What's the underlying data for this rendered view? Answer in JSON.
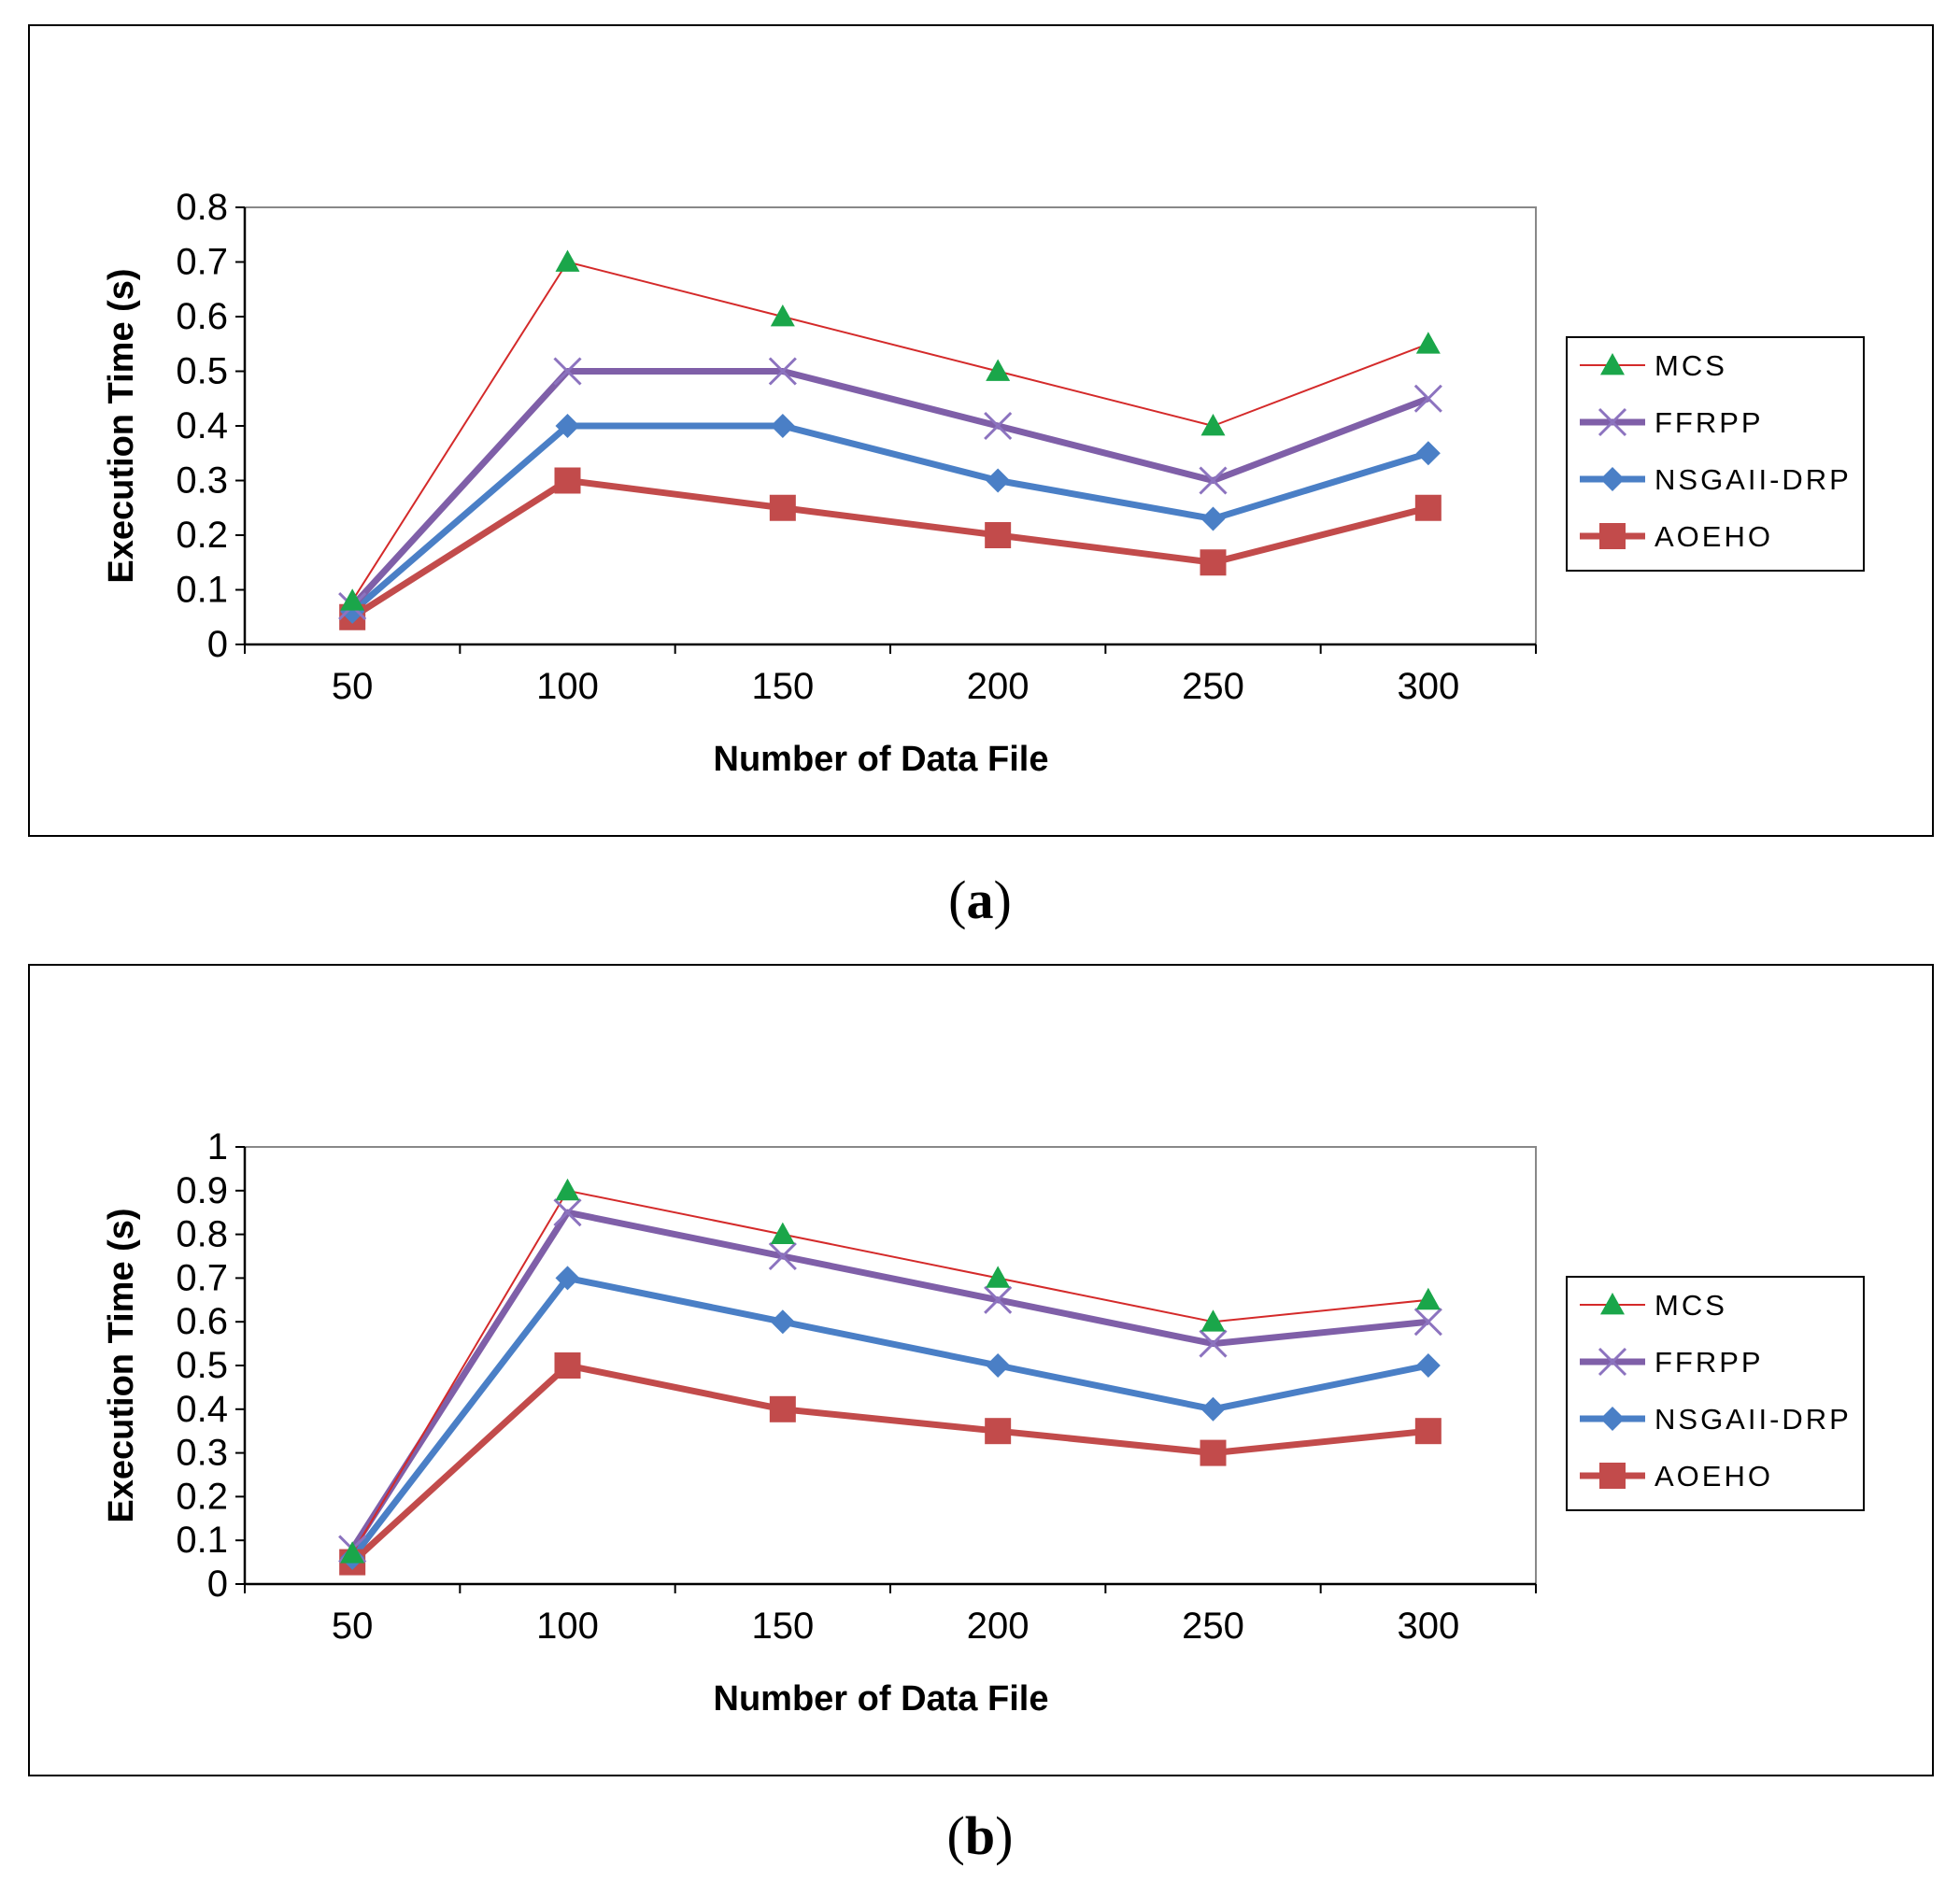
{
  "figures": [
    {
      "id": "a",
      "caption": "a",
      "chart_data": {
        "type": "line",
        "xlabel": "Number of Data File",
        "ylabel": "Execution Time (s)",
        "categories": [
          "50",
          "100",
          "150",
          "200",
          "250",
          "300"
        ],
        "ylim": [
          0,
          0.8
        ],
        "yticks": [
          "0",
          "0.1",
          "0.2",
          "0.3",
          "0.4",
          "0.5",
          "0.6",
          "0.7",
          "0.8"
        ],
        "grid": false,
        "legend_position": "right",
        "series": [
          {
            "name": "MCS",
            "color": "#d42a2a",
            "marker": "triangle",
            "values": [
              0.08,
              0.7,
              0.6,
              0.5,
              0.4,
              0.55
            ]
          },
          {
            "name": "FFRPP",
            "color": "#7f5fa8",
            "marker": "x",
            "values": [
              0.07,
              0.5,
              0.5,
              0.4,
              0.3,
              0.45
            ]
          },
          {
            "name": "NSGAII-DRP",
            "color": "#4a7fc6",
            "marker": "diamond",
            "values": [
              0.06,
              0.4,
              0.4,
              0.3,
              0.23,
              0.35
            ]
          },
          {
            "name": "AOEHO",
            "color": "#c24b4b",
            "marker": "square",
            "values": [
              0.05,
              0.3,
              0.25,
              0.2,
              0.15,
              0.25
            ]
          }
        ]
      }
    },
    {
      "id": "b",
      "caption": "b",
      "chart_data": {
        "type": "line",
        "xlabel": "Number of Data File",
        "ylabel": "Execution Time (s)",
        "categories": [
          "50",
          "100",
          "150",
          "200",
          "250",
          "300"
        ],
        "ylim": [
          0,
          1
        ],
        "yticks": [
          "0",
          "0.1",
          "0.2",
          "0.3",
          "0.4",
          "0.5",
          "0.6",
          "0.7",
          "0.8",
          "0.9",
          "1"
        ],
        "grid": false,
        "legend_position": "right",
        "series": [
          {
            "name": "MCS",
            "color": "#d42a2a",
            "marker": "triangle",
            "values": [
              0.07,
              0.9,
              0.8,
              0.7,
              0.6,
              0.65
            ]
          },
          {
            "name": "FFRPP",
            "color": "#7f5fa8",
            "marker": "x",
            "values": [
              0.08,
              0.85,
              0.75,
              0.65,
              0.55,
              0.6
            ]
          },
          {
            "name": "NSGAII-DRP",
            "color": "#4a7fc6",
            "marker": "diamond",
            "values": [
              0.06,
              0.7,
              0.6,
              0.5,
              0.4,
              0.5
            ]
          },
          {
            "name": "AOEHO",
            "color": "#c24b4b",
            "marker": "square",
            "values": [
              0.05,
              0.5,
              0.4,
              0.35,
              0.3,
              0.35
            ]
          }
        ]
      }
    }
  ]
}
